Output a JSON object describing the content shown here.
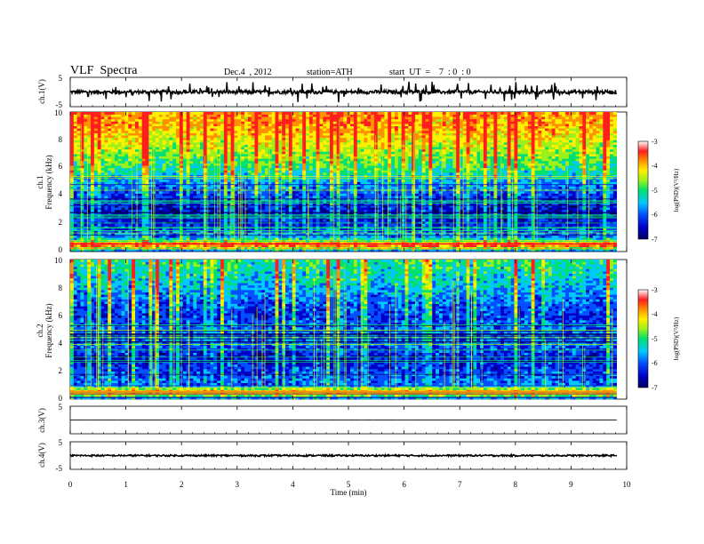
{
  "header": {
    "title": "VLF  Spectra",
    "date": "Dec.4  , 2012",
    "station": "station=ATH",
    "start": "start  UT  =    7  : 0  : 0"
  },
  "colors": {
    "spectrum_scale": [
      "#000060",
      "#0000c8",
      "#0050ff",
      "#00c8ff",
      "#00e070",
      "#9cf01a",
      "#fff000",
      "#ff9000",
      "#ff1e1e",
      "#ffffff"
    ],
    "trace": "#000000",
    "axis": "#000000"
  },
  "chart_data": [
    {
      "type": "line",
      "panel": "ch1-waveform",
      "ylabel": "ch.1(V)",
      "ylim": [
        -5,
        5
      ],
      "yticks": [
        "5",
        "-5"
      ],
      "x_range": [
        0,
        9.82
      ],
      "baseline": 0,
      "noise_level": 0.7,
      "spike_level": 2.5
    },
    {
      "type": "heatmap",
      "panel": "ch1-spectrogram",
      "ylabel": [
        "ch.1",
        "Frequency  (kHz)"
      ],
      "ylim": [
        0,
        10
      ],
      "yticks": [
        "0",
        "2",
        "4",
        "6",
        "8",
        "10"
      ],
      "x_range": [
        0,
        9.82
      ],
      "colorbar": {
        "label": "log(PSD)(V²/Hz)",
        "range": [
          -7,
          -3
        ],
        "ticks": [
          "-3",
          "-4",
          "-5",
          "-6",
          "-7"
        ]
      },
      "mean_log_psd_by_freq": [
        {
          "khz": 0,
          "value": -6.0
        },
        {
          "khz": 0.5,
          "value": -3.2
        },
        {
          "khz": 1.0,
          "value": -5.7
        },
        {
          "khz": 2.0,
          "value": -6.2
        },
        {
          "khz": 3.0,
          "value": -6.3
        },
        {
          "khz": 4.0,
          "value": -6.0
        },
        {
          "khz": 5.0,
          "value": -5.6
        },
        {
          "khz": 6.0,
          "value": -5.0
        },
        {
          "khz": 7.0,
          "value": -4.6
        },
        {
          "khz": 8.0,
          "value": -4.2
        },
        {
          "khz": 9.0,
          "value": -3.8
        },
        {
          "khz": 10.0,
          "value": -3.7
        }
      ]
    },
    {
      "type": "heatmap",
      "panel": "ch2-spectrogram",
      "ylabel": [
        "ch.2",
        "Frequency  (kHz)"
      ],
      "ylim": [
        0,
        10
      ],
      "yticks": [
        "0",
        "2",
        "4",
        "6",
        "8",
        "10"
      ],
      "x_range": [
        0,
        9.82
      ],
      "colorbar": {
        "label": "log(PSD)(V²/Hz)",
        "range": [
          -7,
          -3
        ],
        "ticks": [
          "-3",
          "-4",
          "-5",
          "-6",
          "-7"
        ]
      },
      "mean_log_psd_by_freq": [
        {
          "khz": 0,
          "value": -6.0
        },
        {
          "khz": 0.5,
          "value": -3.6
        },
        {
          "khz": 1.0,
          "value": -5.8
        },
        {
          "khz": 2.0,
          "value": -6.0
        },
        {
          "khz": 3.0,
          "value": -6.3
        },
        {
          "khz": 4.0,
          "value": -5.8
        },
        {
          "khz": 5.0,
          "value": -5.8
        },
        {
          "khz": 6.0,
          "value": -6.1
        },
        {
          "khz": 7.0,
          "value": -5.8
        },
        {
          "khz": 8.0,
          "value": -5.5
        },
        {
          "khz": 9.0,
          "value": -5.2
        },
        {
          "khz": 10.0,
          "value": -5.0
        }
      ]
    },
    {
      "type": "line",
      "panel": "ch3-waveform",
      "ylabel": "ch.3(V)",
      "ylim": [
        -5,
        5
      ],
      "yticks": [
        "5"
      ],
      "x_range": [
        0,
        9.82
      ],
      "baseline": 0,
      "noise_level": 0.02,
      "spike_level": 0
    },
    {
      "type": "line",
      "panel": "ch4-waveform",
      "ylabel": "ch.4(V)",
      "ylim": [
        -5,
        5
      ],
      "yticks": [
        "5",
        "-5"
      ],
      "x_range": [
        0,
        9.82
      ],
      "baseline": 0,
      "noise_level": 0.35,
      "spike_level": 0
    }
  ],
  "x_axis": {
    "label": "Time  (min)",
    "ticks": [
      "0",
      "1",
      "2",
      "3",
      "4",
      "5",
      "6",
      "7",
      "8",
      "9",
      "10"
    ],
    "range": [
      0,
      10
    ]
  }
}
